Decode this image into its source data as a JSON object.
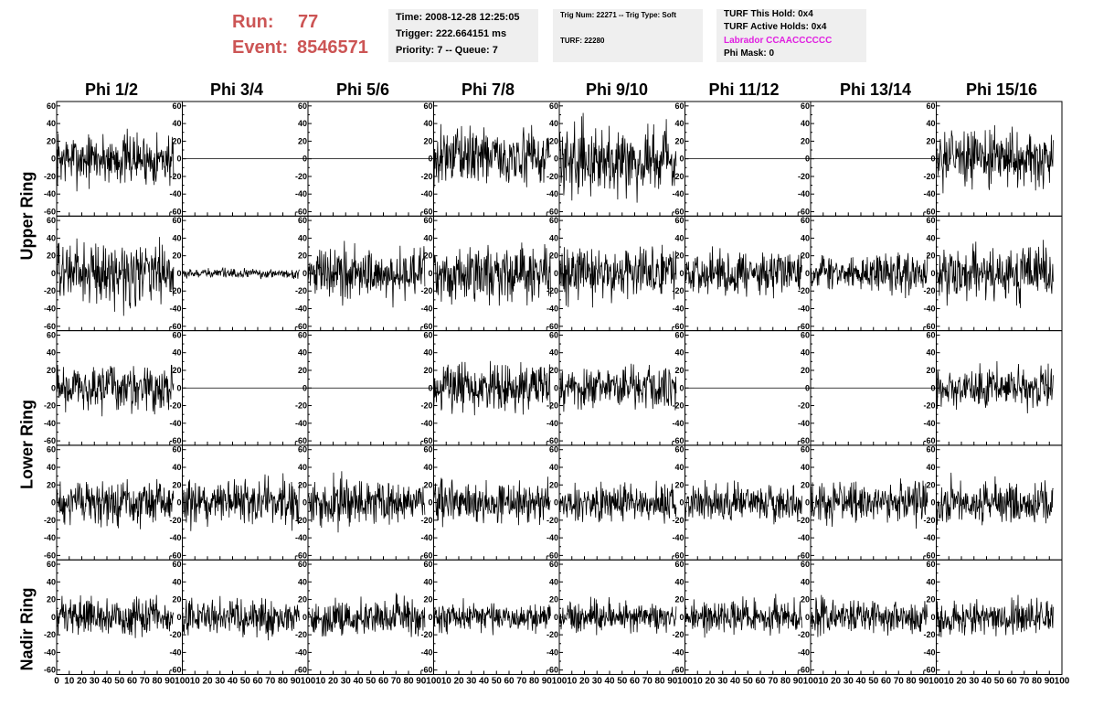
{
  "header": {
    "run_label": "Run:",
    "run_value": "77",
    "event_label": "Event:",
    "event_value": "8546571",
    "time": "Time: 2008-12-28 12:25:05",
    "trigger": "Trigger: 222.664151 ms",
    "priority_queue": "Priority: 7 -- Queue: 7",
    "trig_num_type": "Trig Num: 22271 -- Trig Type: Soft",
    "turf": "TURF: 22280",
    "turf_this_hold": "TURF This Hold: 0x4",
    "turf_active_holds": "TURF Active Holds: 0x4",
    "labrador": "Labrador CCAACCCCCC",
    "phi_mask": "Phi Mask: 0"
  },
  "colors": {
    "run_text": "#cc5555",
    "labrador_text": "#e020e0",
    "info_box_bg": "#efefef",
    "trace": "#000000"
  },
  "chart_data": {
    "type": "line",
    "columns": [
      "Phi 1/2",
      "Phi 3/4",
      "Phi 5/6",
      "Phi 7/8",
      "Phi 9/10",
      "Phi 11/12",
      "Phi 13/14",
      "Phi 15/16"
    ],
    "rings": [
      "Upper Ring",
      "Lower Ring",
      "Nadir Ring"
    ],
    "xlim": [
      0,
      100
    ],
    "ylim": [
      -65,
      65
    ],
    "x_ticks": [
      0,
      10,
      20,
      30,
      40,
      50,
      60,
      70,
      80,
      90,
      100
    ],
    "y_ticks": [
      -60,
      -40,
      -20,
      0,
      20,
      40,
      60
    ],
    "x_tick_labels": [
      "0",
      "10",
      "20",
      "30",
      "40",
      "50",
      "60",
      "70",
      "80",
      "90",
      "100"
    ],
    "y_tick_labels": [
      "-60",
      "-40",
      "-20",
      "0",
      "20",
      "40",
      "60"
    ],
    "row_ring": [
      0,
      0,
      1,
      1,
      2
    ],
    "trace_amplitude_rows": [
      [
        17,
        0,
        0,
        18,
        22,
        0,
        0,
        18
      ],
      [
        20,
        3,
        17,
        18,
        17,
        14,
        12,
        17
      ],
      [
        15,
        0,
        0,
        16,
        14,
        0,
        0,
        13
      ],
      [
        14,
        15,
        15,
        14,
        12,
        12,
        13,
        14
      ],
      [
        12,
        12,
        12,
        10,
        10,
        11,
        11,
        11
      ]
    ]
  }
}
